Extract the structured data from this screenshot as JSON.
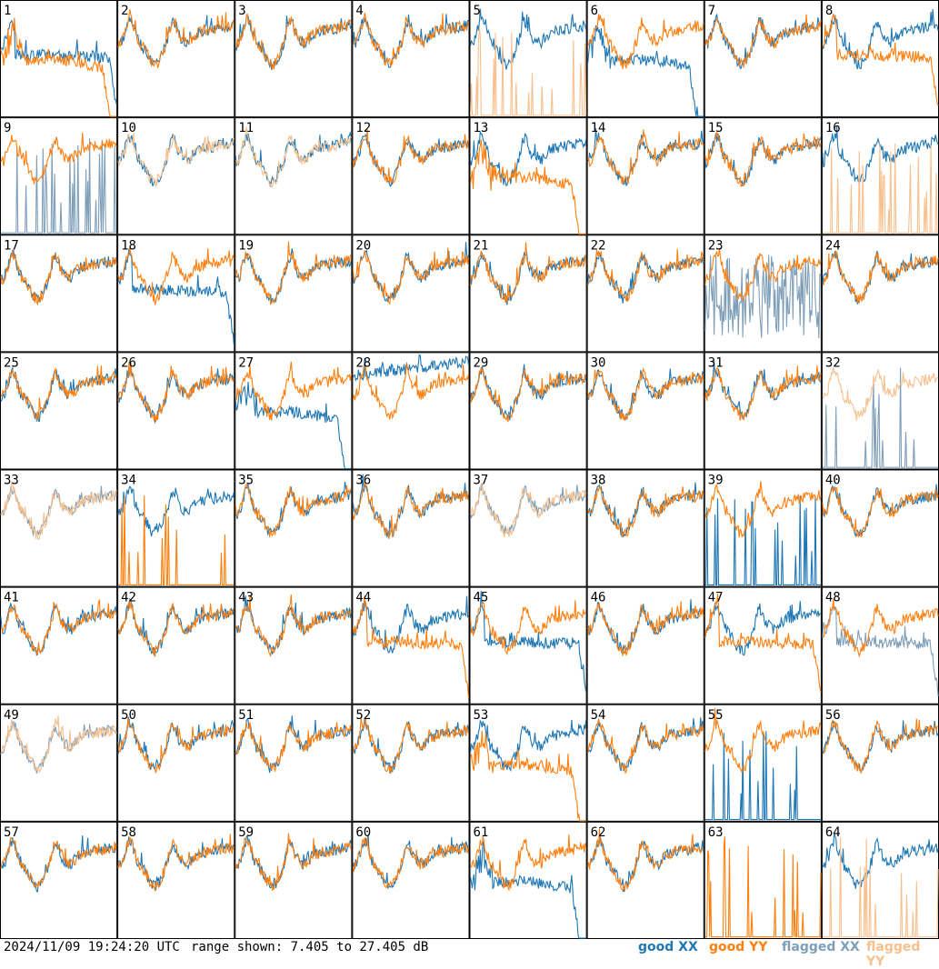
{
  "footer": {
    "timestamp": "2024/11/09 19:24:20 UTC",
    "range": "range shown: 7.405 to 27.405 dB"
  },
  "legend": {
    "good_xx": "good XX",
    "good_yy": "good YY",
    "flagged_xx": "flagged XX",
    "flagged_yy": "flagged YY"
  },
  "colors": {
    "good_xx": "#1f77b4",
    "good_yy": "#ff7f0e",
    "flagged_xx": "#7f9fb9",
    "flagged_yy": "#f7c08e"
  },
  "chart_data": {
    "type": "line",
    "layout": "8x8 small multiples, one panel per antenna",
    "ylim": [
      7.405,
      27.405
    ],
    "yunit": "dB",
    "panels": [
      {
        "label": "1",
        "xx": "good",
        "yy": "good",
        "xx_shape": "flat",
        "yy_shape": "drop"
      },
      {
        "label": "2",
        "xx": "good",
        "yy": "good"
      },
      {
        "label": "3",
        "xx": "good",
        "yy": "good"
      },
      {
        "label": "4",
        "xx": "good",
        "yy": "good"
      },
      {
        "label": "5",
        "xx": "good",
        "yy": "flagged",
        "yy_shape": "spikes"
      },
      {
        "label": "6",
        "xx": "good",
        "yy": "good",
        "xx_shape": "drop"
      },
      {
        "label": "7",
        "xx": "good",
        "yy": "good"
      },
      {
        "label": "8",
        "xx": "good",
        "yy": "good",
        "yy_shape": "flat"
      },
      {
        "label": "9",
        "xx": "flagged",
        "yy": "good",
        "xx_shape": "spikes"
      },
      {
        "label": "10",
        "xx": "good",
        "yy": "flagged"
      },
      {
        "label": "11",
        "xx": "good",
        "yy": "flagged"
      },
      {
        "label": "12",
        "xx": "good",
        "yy": "good"
      },
      {
        "label": "13",
        "xx": "good",
        "yy": "good",
        "yy_shape": "drop"
      },
      {
        "label": "14",
        "xx": "good",
        "yy": "good"
      },
      {
        "label": "15",
        "xx": "good",
        "yy": "good"
      },
      {
        "label": "16",
        "xx": "good",
        "yy": "flagged",
        "yy_shape": "spikes"
      },
      {
        "label": "17",
        "xx": "good",
        "yy": "good"
      },
      {
        "label": "18",
        "xx": "good",
        "yy": "good",
        "xx_shape": "flat"
      },
      {
        "label": "19",
        "xx": "good",
        "yy": "good"
      },
      {
        "label": "20",
        "xx": "good",
        "yy": "good"
      },
      {
        "label": "21",
        "xx": "good",
        "yy": "good"
      },
      {
        "label": "22",
        "xx": "good",
        "yy": "good"
      },
      {
        "label": "23",
        "xx": "flagged",
        "yy": "good",
        "xx_shape": "noisy"
      },
      {
        "label": "24",
        "xx": "good",
        "yy": "good"
      },
      {
        "label": "25",
        "xx": "good",
        "yy": "good"
      },
      {
        "label": "26",
        "xx": "good",
        "yy": "good"
      },
      {
        "label": "27",
        "xx": "good",
        "yy": "good",
        "xx_shape": "drop"
      },
      {
        "label": "28",
        "xx": "good",
        "yy": "good",
        "xx_shape": "high"
      },
      {
        "label": "29",
        "xx": "good",
        "yy": "good"
      },
      {
        "label": "30",
        "xx": "good",
        "yy": "good"
      },
      {
        "label": "31",
        "xx": "good",
        "yy": "good"
      },
      {
        "label": "32",
        "xx": "flagged",
        "yy": "flagged",
        "xx_shape": "spikes"
      },
      {
        "label": "33",
        "xx": "flagged",
        "yy": "flagged"
      },
      {
        "label": "34",
        "xx": "good",
        "yy": "good",
        "yy_shape": "spikes"
      },
      {
        "label": "35",
        "xx": "good",
        "yy": "good"
      },
      {
        "label": "36",
        "xx": "good",
        "yy": "good"
      },
      {
        "label": "37",
        "xx": "flagged",
        "yy": "flagged"
      },
      {
        "label": "38",
        "xx": "good",
        "yy": "good"
      },
      {
        "label": "39",
        "xx": "good",
        "yy": "good",
        "xx_shape": "spikes"
      },
      {
        "label": "40",
        "xx": "good",
        "yy": "good"
      },
      {
        "label": "41",
        "xx": "good",
        "yy": "good"
      },
      {
        "label": "42",
        "xx": "good",
        "yy": "good"
      },
      {
        "label": "43",
        "xx": "good",
        "yy": "good"
      },
      {
        "label": "44",
        "xx": "good",
        "yy": "good",
        "yy_shape": "flat"
      },
      {
        "label": "45",
        "xx": "good",
        "yy": "good",
        "xx_shape": "flat"
      },
      {
        "label": "46",
        "xx": "good",
        "yy": "good"
      },
      {
        "label": "47",
        "xx": "good",
        "yy": "good",
        "yy_shape": "flat"
      },
      {
        "label": "48",
        "xx": "flagged",
        "yy": "good",
        "xx_shape": "flat"
      },
      {
        "label": "49",
        "xx": "flagged",
        "yy": "flagged"
      },
      {
        "label": "50",
        "xx": "good",
        "yy": "good"
      },
      {
        "label": "51",
        "xx": "good",
        "yy": "good"
      },
      {
        "label": "52",
        "xx": "good",
        "yy": "good"
      },
      {
        "label": "53",
        "xx": "good",
        "yy": "good",
        "yy_shape": "drop"
      },
      {
        "label": "54",
        "xx": "good",
        "yy": "good"
      },
      {
        "label": "55",
        "xx": "good",
        "yy": "good",
        "xx_shape": "spikes"
      },
      {
        "label": "56",
        "xx": "good",
        "yy": "good"
      },
      {
        "label": "57",
        "xx": "good",
        "yy": "good"
      },
      {
        "label": "58",
        "xx": "good",
        "yy": "good"
      },
      {
        "label": "59",
        "xx": "good",
        "yy": "good"
      },
      {
        "label": "60",
        "xx": "good",
        "yy": "good"
      },
      {
        "label": "61",
        "xx": "good",
        "yy": "good",
        "xx_shape": "drop"
      },
      {
        "label": "62",
        "xx": "good",
        "yy": "good"
      },
      {
        "label": "63",
        "xx": "none",
        "yy": "good",
        "yy_shape": "spikes"
      },
      {
        "label": "64",
        "xx": "good",
        "yy": "flagged",
        "yy_shape": "spikes"
      }
    ]
  }
}
